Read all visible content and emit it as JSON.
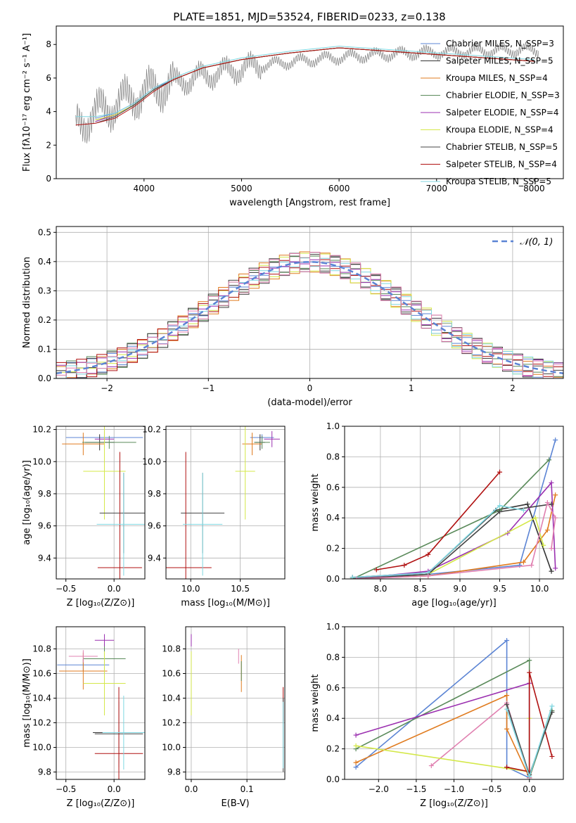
{
  "colors": {
    "chabrier_miles": "#5b84d4",
    "salpeter_miles": "#333333",
    "kroupa_miles": "#e07b1f",
    "chabrier_elodie": "#5a8a5a",
    "salpeter_elodie": "#9b30b0",
    "kroupa_elodie": "#d4e84a",
    "chabrier_stelib": "#444444",
    "salpeter_stelib": "#b01010",
    "kroupa_stelib": "#7fd6e0",
    "pink": "#e080b0",
    "data_gray": "#808080",
    "grid": "#b0b0b0"
  },
  "chart_data": [
    {
      "id": "spectrum",
      "type": "line",
      "title": "PLATE=1851, MJD=53524, FIBERID=0233, z=0.138",
      "xlabel": "wavelength [Angstrom, rest frame]",
      "ylabel": "Flux [fλ10⁻¹⁷ erg cm⁻² s⁻¹ A⁻¹]",
      "xlim": [
        3100,
        8300
      ],
      "ylim": [
        0,
        9.1
      ],
      "xticks": [
        4000,
        5000,
        6000,
        7000,
        8000
      ],
      "yticks": [
        0,
        2,
        4,
        6,
        8
      ],
      "grid": false,
      "legend_position": "right",
      "series": [
        {
          "name": "Chabrier MILES, N_SSP=3",
          "key": "chabrier_miles",
          "x": [
            3500,
            3700,
            3900,
            4100,
            4300,
            4600,
            5000,
            5500,
            6000,
            6500,
            7000,
            7500,
            8000
          ],
          "y": [
            3.6,
            3.9,
            4.5,
            5.4,
            5.9,
            6.6,
            7.1,
            7.5,
            7.8,
            7.6,
            7.4,
            7.2,
            7.0
          ]
        },
        {
          "name": "Salpeter MILES, N_SSP=5",
          "key": "salpeter_miles",
          "x": [
            3500,
            3700,
            3900,
            4100,
            4300,
            4600,
            5000,
            5500,
            6000,
            6500,
            7000,
            7500,
            8000
          ],
          "y": [
            3.5,
            3.8,
            4.4,
            5.3,
            5.9,
            6.6,
            7.1,
            7.5,
            7.8,
            7.6,
            7.4,
            7.2,
            7.0
          ]
        },
        {
          "name": "Kroupa MILES, N_SSP=4",
          "key": "kroupa_miles",
          "x": [
            3500,
            3700,
            3900,
            4100,
            4300,
            4600,
            5000,
            5500,
            6000,
            6500,
            7000,
            7500,
            8000
          ],
          "y": [
            3.5,
            3.8,
            4.4,
            5.3,
            5.9,
            6.6,
            7.1,
            7.5,
            7.8,
            7.6,
            7.4,
            7.2,
            7.0
          ]
        },
        {
          "name": "Chabrier ELODIE, N_SSP=3",
          "key": "chabrier_elodie",
          "x": [
            3500,
            3700,
            3900,
            4100,
            4300,
            4600,
            5000,
            5500,
            6000,
            6500,
            7000,
            7500,
            8000
          ],
          "y": [
            3.4,
            3.8,
            4.4,
            5.3,
            5.9,
            6.6,
            7.1,
            7.5,
            7.8,
            7.6,
            7.4,
            7.2,
            7.0
          ]
        },
        {
          "name": "Salpeter ELODIE, N_SSP=4",
          "key": "salpeter_elodie",
          "x": [
            3500,
            3700,
            3900,
            4100,
            4300,
            4600,
            5000,
            5500,
            6000,
            6500,
            7000,
            7500,
            8000
          ],
          "y": [
            3.4,
            3.8,
            4.4,
            5.3,
            5.9,
            6.6,
            7.1,
            7.5,
            7.8,
            7.6,
            7.4,
            7.2,
            7.0
          ]
        },
        {
          "name": "Kroupa ELODIE, N_SSP=4",
          "key": "kroupa_elodie",
          "x": [
            3500,
            3700,
            3900,
            4100,
            4300,
            4600,
            5000,
            5500,
            6000,
            6500,
            7000,
            7500,
            8000
          ],
          "y": [
            3.5,
            3.8,
            4.4,
            5.3,
            5.9,
            6.6,
            7.1,
            7.5,
            7.8,
            7.6,
            7.4,
            7.2,
            7.0
          ]
        },
        {
          "name": "Chabrier STELIB, N_SSP=5",
          "key": "chabrier_stelib",
          "x": [
            3500,
            3700,
            3900,
            4100,
            4300,
            4600,
            5000,
            5500,
            6000,
            6500,
            7000,
            7500,
            8000
          ],
          "y": [
            3.3,
            3.7,
            4.4,
            5.3,
            5.9,
            6.6,
            7.1,
            7.5,
            7.8,
            7.6,
            7.4,
            7.2,
            7.0
          ]
        },
        {
          "name": "Salpeter STELIB, N_SSP=4",
          "key": "salpeter_stelib",
          "x": [
            3300,
            3500,
            3700,
            3900,
            4100,
            4300,
            4600,
            5000,
            5500,
            6000,
            6500,
            7000,
            7500,
            8000
          ],
          "y": [
            3.2,
            3.3,
            3.6,
            4.3,
            5.2,
            5.9,
            6.6,
            7.1,
            7.5,
            7.8,
            7.6,
            7.4,
            7.2,
            7.0
          ]
        },
        {
          "name": "Kroupa STELIB, N_SSP=5",
          "key": "kroupa_stelib",
          "x": [
            3300,
            3500,
            3700,
            3900,
            4100,
            4300,
            4600,
            5000,
            5500,
            6000,
            6500,
            7000,
            7500,
            8000
          ],
          "y": [
            3.7,
            3.7,
            3.9,
            4.5,
            5.4,
            6.0,
            6.7,
            7.2,
            7.6,
            7.9,
            7.7,
            7.5,
            7.3,
            7.1
          ]
        }
      ]
    },
    {
      "id": "residuals",
      "type": "line",
      "xlabel": "(data-model)/error",
      "ylabel": "Normed distribution",
      "xlim": [
        -2.5,
        2.5
      ],
      "ylim": [
        0,
        0.52
      ],
      "xticks": [
        -2,
        -1,
        0,
        1,
        2
      ],
      "yticks": [
        0.0,
        0.1,
        0.2,
        0.3,
        0.4,
        0.5
      ],
      "grid": true,
      "legend_position": "top-right",
      "legend": "𝒩(0, 1)",
      "note": "step histograms of residuals for each model; dashed line is N(0,1)"
    },
    {
      "id": "age_vs_Z",
      "type": "scatter",
      "xlabel": "Z [log₁₀(Z/Z⊙)]",
      "ylabel": "age  [log₁₀(age/yr)]",
      "xlim": [
        -0.6,
        0.32
      ],
      "ylim": [
        9.27,
        10.22
      ],
      "xticks": [
        -0.5,
        0.0
      ],
      "yticks": [
        9.4,
        9.6,
        9.8,
        10.0,
        10.2
      ],
      "grid": true,
      "points": [
        {
          "key": "chabrier_miles",
          "x": -0.1,
          "y": 10.15,
          "xerr": 0.4,
          "yerr": 0.02
        },
        {
          "key": "salpeter_miles",
          "x": -0.15,
          "y": 10.12,
          "xerr": 0.15,
          "yerr": 0.05
        },
        {
          "key": "kroupa_miles",
          "x": -0.32,
          "y": 10.11,
          "xerr": 0.22,
          "yerr": 0.07
        },
        {
          "key": "chabrier_elodie",
          "x": -0.05,
          "y": 10.12,
          "xerr": 0.28,
          "yerr": 0.04
        },
        {
          "key": "salpeter_elodie",
          "x": -0.1,
          "y": 10.14,
          "xerr": 0.1,
          "yerr": 0.05
        },
        {
          "key": "kroupa_elodie",
          "x": -0.1,
          "y": 9.94,
          "xerr": 0.22,
          "yerr": 0.3
        },
        {
          "key": "chabrier_stelib",
          "x": 0.1,
          "y": 9.68,
          "xerr": 0.25,
          "yerr": 0.25
        },
        {
          "key": "salpeter_stelib",
          "x": 0.06,
          "y": 9.34,
          "xerr": 0.23,
          "yerr": 0.72
        },
        {
          "key": "kroupa_stelib",
          "x": 0.1,
          "y": 9.61,
          "xerr": 0.28,
          "yerr": 0.32
        }
      ]
    },
    {
      "id": "age_vs_mass",
      "type": "scatter",
      "xlabel": "mass [log₁₀(M/M⊙)]",
      "ylabel": "",
      "xlim": [
        9.75,
        10.95
      ],
      "ylim": [
        9.27,
        10.22
      ],
      "xticks": [
        10.0,
        10.5
      ],
      "yticks": [
        9.4,
        9.6,
        9.8,
        10.0,
        10.2
      ],
      "grid": true,
      "points": [
        {
          "key": "chabrier_miles",
          "x": 10.72,
          "y": 10.15,
          "xerr": 0.12,
          "yerr": 0.02
        },
        {
          "key": "salpeter_miles",
          "x": 10.7,
          "y": 10.12,
          "xerr": 0.05,
          "yerr": 0.05
        },
        {
          "key": "kroupa_miles",
          "x": 10.62,
          "y": 10.11,
          "xerr": 0.1,
          "yerr": 0.07
        },
        {
          "key": "chabrier_elodie",
          "x": 10.72,
          "y": 10.12,
          "xerr": 0.08,
          "yerr": 0.04
        },
        {
          "key": "salpeter_elodie",
          "x": 10.82,
          "y": 10.14,
          "xerr": 0.08,
          "yerr": 0.05
        },
        {
          "key": "kroupa_elodie",
          "x": 10.55,
          "y": 9.94,
          "xerr": 0.1,
          "yerr": 0.3
        },
        {
          "key": "chabrier_stelib",
          "x": 10.12,
          "y": 9.68,
          "xerr": 0.22,
          "yerr": 0.25
        },
        {
          "key": "salpeter_stelib",
          "x": 9.95,
          "y": 9.34,
          "xerr": 0.26,
          "yerr": 0.72
        },
        {
          "key": "kroupa_stelib",
          "x": 10.12,
          "y": 9.61,
          "xerr": 0.2,
          "yerr": 0.32
        }
      ]
    },
    {
      "id": "weight_vs_age",
      "type": "line",
      "xlabel": "age  [log₁₀(age/yr)]",
      "ylabel": "mass weight",
      "xlim": [
        7.55,
        10.3
      ],
      "ylim": [
        0,
        1.0
      ],
      "xticks": [
        8.0,
        8.5,
        9.0,
        9.5,
        10.0
      ],
      "yticks": [
        0.0,
        0.2,
        0.4,
        0.6,
        0.8,
        1.0
      ],
      "grid": true,
      "series": [
        {
          "key": "chabrier_miles",
          "x": [
            7.65,
            8.6,
            9.75,
            10.2
          ],
          "y": [
            0.01,
            0.03,
            0.09,
            0.91
          ]
        },
        {
          "key": "salpeter_miles",
          "x": [
            7.65,
            8.6,
            9.45,
            9.85,
            10.15
          ],
          "y": [
            0.01,
            0.04,
            0.45,
            0.49,
            0.05
          ]
        },
        {
          "key": "kroupa_miles",
          "x": [
            7.65,
            8.6,
            9.8,
            10.1,
            10.2
          ],
          "y": [
            0.0,
            0.02,
            0.11,
            0.32,
            0.55
          ]
        },
        {
          "key": "chabrier_elodie",
          "x": [
            7.65,
            9.5,
            10.12
          ],
          "y": [
            0.0,
            0.45,
            0.78
          ]
        },
        {
          "key": "salpeter_elodie",
          "x": [
            7.65,
            8.6,
            9.6,
            10.15,
            10.2
          ],
          "y": [
            0.0,
            0.05,
            0.3,
            0.63,
            0.07
          ]
        },
        {
          "key": "kroupa_elodie",
          "x": [
            7.65,
            8.6,
            9.95,
            10.05
          ],
          "y": [
            0.0,
            0.03,
            0.4,
            0.22
          ]
        },
        {
          "key": "chabrier_stelib",
          "x": [
            7.65,
            8.6,
            9.5,
            10.15
          ],
          "y": [
            0.0,
            0.03,
            0.44,
            0.49
          ]
        },
        {
          "key": "salpeter_stelib",
          "x": [
            7.95,
            8.3,
            8.6,
            9.5
          ],
          "y": [
            0.06,
            0.09,
            0.16,
            0.7
          ]
        },
        {
          "key": "kroupa_stelib",
          "x": [
            7.65,
            8.6,
            9.5,
            9.8
          ],
          "y": [
            0.01,
            0.04,
            0.48,
            0.45
          ]
        },
        {
          "key": "pink",
          "x": [
            7.7,
            8.6,
            9.9,
            10.1,
            10.2,
            10.15
          ],
          "y": [
            0.0,
            0.02,
            0.09,
            0.5,
            0.4,
            0.2
          ]
        }
      ]
    },
    {
      "id": "mass_vs_Z",
      "type": "scatter",
      "xlabel": "Z [log₁₀(Z/Z⊙)]",
      "ylabel": "mass [log₁₀(M/M⊙)]",
      "xlim": [
        -0.6,
        0.32
      ],
      "ylim": [
        9.74,
        10.98
      ],
      "xticks": [
        -0.5,
        0.0
      ],
      "yticks": [
        9.8,
        10.0,
        10.2,
        10.4,
        10.6,
        10.8
      ],
      "grid": true,
      "points": [
        {
          "key": "chabrier_miles",
          "x": -0.32,
          "y": 10.67,
          "xerr": 0.27,
          "yerr": 0.05
        },
        {
          "key": "salpeter_miles",
          "x": 0.05,
          "y": 10.12,
          "xerr": 0.27,
          "yerr": 0.25
        },
        {
          "key": "kroupa_miles",
          "x": -0.32,
          "y": 10.62,
          "xerr": 0.25,
          "yerr": 0.15
        },
        {
          "key": "chabrier_elodie",
          "x": -0.1,
          "y": 10.72,
          "xerr": 0.22,
          "yerr": 0.12
        },
        {
          "key": "salpeter_elodie",
          "x": -0.1,
          "y": 10.87,
          "xerr": 0.1,
          "yerr": 0.05
        },
        {
          "key": "kroupa_elodie",
          "x": -0.1,
          "y": 10.52,
          "xerr": 0.22,
          "yerr": 0.26
        },
        {
          "key": "chabrier_stelib",
          "x": 0.05,
          "y": 10.11,
          "xerr": 0.25,
          "yerr": 0.27
        },
        {
          "key": "salpeter_stelib",
          "x": 0.05,
          "y": 9.95,
          "xerr": 0.25,
          "yerr": 0.54
        },
        {
          "key": "kroupa_stelib",
          "x": 0.1,
          "y": 10.12,
          "xerr": 0.22,
          "yerr": 0.3
        },
        {
          "key": "pink",
          "x": -0.32,
          "y": 10.74,
          "xerr": 0.15,
          "yerr": 0.05
        }
      ]
    },
    {
      "id": "mass_vs_ebv",
      "type": "scatter",
      "xlabel": "E(B-V)",
      "ylabel": "",
      "xlim": [
        -0.01,
        0.168
      ],
      "ylim": [
        9.74,
        10.98
      ],
      "xticks": [
        0.0,
        0.1
      ],
      "yticks": [
        9.8,
        10.0,
        10.2,
        10.4,
        10.6,
        10.8
      ],
      "grid": true,
      "points": [
        {
          "key": "salpeter_elodie",
          "x": 0.0,
          "y": 10.87,
          "xerr": 0,
          "yerr": 0.05
        },
        {
          "key": "kroupa_elodie",
          "x": 0.0,
          "y": 10.52,
          "xerr": 0,
          "yerr": 0.26
        },
        {
          "key": "pink",
          "x": 0.085,
          "y": 10.74,
          "xerr": 0,
          "yerr": 0.06
        },
        {
          "key": "kroupa_miles",
          "x": 0.09,
          "y": 10.6,
          "xerr": 0,
          "yerr": 0.15
        },
        {
          "key": "chabrier_elodie",
          "x": 0.09,
          "y": 10.62,
          "xerr": 0,
          "yerr": 0.08
        },
        {
          "key": "salpeter_stelib",
          "x": 0.165,
          "y": 10.35,
          "xerr": 0,
          "yerr": 0.14
        },
        {
          "key": "chabrier_stelib",
          "x": 0.165,
          "y": 10.1,
          "xerr": 0,
          "yerr": 0.3
        },
        {
          "key": "kroupa_stelib",
          "x": 0.165,
          "y": 10.1,
          "xerr": 0,
          "yerr": 0.27
        }
      ]
    },
    {
      "id": "weight_vs_Z",
      "type": "line",
      "xlabel": "Z [log₁₀(Z/Z⊙)]",
      "ylabel": "mass weight",
      "xlim": [
        -2.45,
        0.45
      ],
      "ylim": [
        0,
        1.0
      ],
      "xticks": [
        -2.0,
        -1.5,
        -1.0,
        -0.5,
        0.0
      ],
      "yticks": [
        0.0,
        0.2,
        0.4,
        0.6,
        0.8,
        1.0
      ],
      "grid": true,
      "series": [
        {
          "key": "chabrier_miles",
          "x": [
            -2.3,
            -0.3,
            -0.3,
            0.0
          ],
          "y": [
            0.08,
            0.91,
            0.08,
            0.01
          ]
        },
        {
          "key": "chabrier_elodie",
          "x": [
            -2.3,
            0.0,
            0.0,
            0.3
          ],
          "y": [
            0.2,
            0.78,
            0.01,
            0.45
          ]
        },
        {
          "key": "salpeter_elodie",
          "x": [
            -2.3,
            0.0,
            0.0
          ],
          "y": [
            0.29,
            0.63,
            0.01
          ]
        },
        {
          "key": "kroupa_miles",
          "x": [
            -2.3,
            -0.3,
            -0.3,
            0.0
          ],
          "y": [
            0.11,
            0.55,
            0.33,
            0.01
          ]
        },
        {
          "key": "pink",
          "x": [
            -1.3,
            -0.3,
            0.0
          ],
          "y": [
            0.09,
            0.5,
            0.01
          ]
        },
        {
          "key": "kroupa_elodie",
          "x": [
            -2.3,
            0.0,
            0.0
          ],
          "y": [
            0.22,
            0.05,
            0.4
          ]
        },
        {
          "key": "salpeter_stelib",
          "x": [
            -0.3,
            0.0,
            0.0,
            0.3
          ],
          "y": [
            0.08,
            0.05,
            0.7,
            0.15
          ]
        },
        {
          "key": "chabrier_stelib",
          "x": [
            -0.3,
            0.0,
            0.3
          ],
          "y": [
            0.49,
            0.03,
            0.44
          ]
        },
        {
          "key": "kroupa_stelib",
          "x": [
            -0.3,
            0.0,
            0.3
          ],
          "y": [
            0.46,
            0.02,
            0.48
          ]
        }
      ]
    }
  ]
}
